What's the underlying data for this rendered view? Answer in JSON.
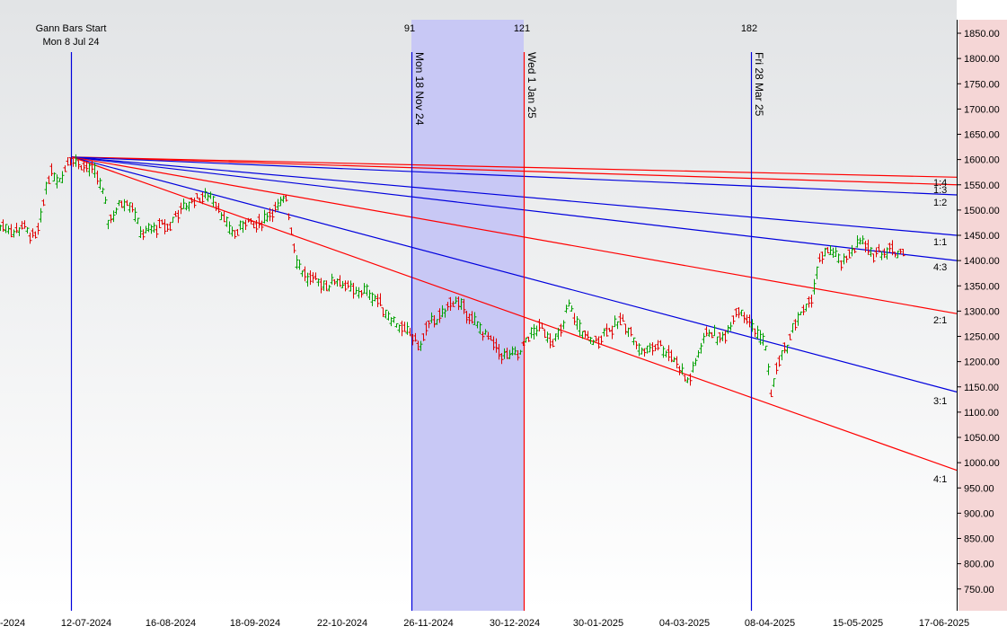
{
  "chart_data": {
    "type": "candlestick-ohlc with gann fan",
    "colors": {
      "up": "#00a000",
      "down": "#e00000",
      "fan_red": "#ff0000",
      "fan_blue": "#0000dd",
      "bar_line": "#0000dd",
      "band_fill": "#c8c8f5",
      "future_zone": "#f5d6d6",
      "bg_top": "#e2e4e6",
      "bg_bottom": "#ffffff"
    },
    "x_labels": [
      "-2024",
      "12-07-2024",
      "16-08-2024",
      "18-09-2024",
      "22-10-2024",
      "26-11-2024",
      "30-12-2024",
      "30-01-2025",
      "04-03-2025",
      "08-04-2025",
      "15-05-2025",
      "17-06-2025"
    ],
    "y_ticks": [
      "750.00",
      "800.00",
      "850.00",
      "900.00",
      "950.00",
      "1000.00",
      "1050.00",
      "1100.00",
      "1150.00",
      "1200.00",
      "1250.00",
      "1300.00",
      "1350.00",
      "1400.00",
      "1450.00",
      "1500.00",
      "1550.00",
      "1600.00",
      "1650.00",
      "1700.00",
      "1750.00",
      "1800.00",
      "1850.00"
    ],
    "ylim": [
      725,
      1870
    ],
    "markers": [
      {
        "title": "Gann Bars Start",
        "date": "Mon 8 Jul 24"
      },
      {
        "count": "91",
        "date": "Mon 18 Nov 24"
      },
      {
        "count": "121",
        "date": "Wed 1 Jan 25"
      },
      {
        "count": "182",
        "date": "Fri 28 Mar 25"
      }
    ],
    "fan_origin": {
      "date": "08-07-2024",
      "price": 1605
    },
    "fan_lines": [
      {
        "label": "1:4",
        "color": "red",
        "end_price": 1565
      },
      {
        "label": "1:3",
        "color": "red",
        "end_price": 1550
      },
      {
        "label": "1:2",
        "color": "blue",
        "end_price": 1530
      },
      {
        "label": "1:1",
        "color": "blue",
        "end_price": 1450
      },
      {
        "label": "4:3",
        "color": "blue",
        "end_price": 1400
      },
      {
        "label": "2:1",
        "color": "red",
        "end_price": 1295
      },
      {
        "label": "3:1",
        "color": "blue",
        "end_price": 1140
      },
      {
        "label": "4:1",
        "color": "red",
        "end_price": 985
      }
    ],
    "price_path": [
      [
        -1,
        1465
      ],
      [
        5,
        1470
      ],
      [
        15,
        1455
      ],
      [
        25,
        1470
      ],
      [
        33,
        1450
      ],
      [
        40,
        1445
      ],
      [
        46,
        1490
      ],
      [
        52,
        1560
      ],
      [
        58,
        1575
      ],
      [
        64,
        1560
      ],
      [
        70,
        1570
      ],
      [
        76,
        1600
      ],
      [
        80,
        1605
      ],
      [
        88,
        1590
      ],
      [
        95,
        1585
      ],
      [
        103,
        1580
      ],
      [
        110,
        1560
      ],
      [
        116,
        1520
      ],
      [
        120,
        1480
      ],
      [
        126,
        1490
      ],
      [
        132,
        1510
      ],
      [
        140,
        1520
      ],
      [
        148,
        1505
      ],
      [
        155,
        1460
      ],
      [
        160,
        1450
      ],
      [
        166,
        1465
      ],
      [
        172,
        1460
      ],
      [
        180,
        1470
      ],
      [
        188,
        1465
      ],
      [
        195,
        1490
      ],
      [
        205,
        1505
      ],
      [
        215,
        1520
      ],
      [
        225,
        1525
      ],
      [
        235,
        1530
      ],
      [
        243,
        1505
      ],
      [
        250,
        1475
      ],
      [
        257,
        1460
      ],
      [
        262,
        1450
      ],
      [
        268,
        1470
      ],
      [
        275,
        1480
      ],
      [
        283,
        1465
      ],
      [
        290,
        1475
      ],
      [
        298,
        1490
      ],
      [
        305,
        1500
      ],
      [
        312,
        1510
      ],
      [
        318,
        1525
      ],
      [
        324,
        1460
      ],
      [
        330,
        1400
      ],
      [
        336,
        1380
      ],
      [
        342,
        1365
      ],
      [
        350,
        1360
      ],
      [
        358,
        1355
      ],
      [
        366,
        1350
      ],
      [
        374,
        1365
      ],
      [
        380,
        1355
      ],
      [
        388,
        1345
      ],
      [
        396,
        1335
      ],
      [
        404,
        1340
      ],
      [
        412,
        1335
      ],
      [
        420,
        1320
      ],
      [
        428,
        1300
      ],
      [
        436,
        1285
      ],
      [
        444,
        1270
      ],
      [
        450,
        1260
      ],
      [
        456,
        1255
      ],
      [
        462,
        1240
      ],
      [
        468,
        1230
      ],
      [
        474,
        1265
      ],
      [
        480,
        1280
      ],
      [
        487,
        1285
      ],
      [
        494,
        1295
      ],
      [
        500,
        1315
      ],
      [
        507,
        1320
      ],
      [
        513,
        1310
      ],
      [
        520,
        1295
      ],
      [
        526,
        1280
      ],
      [
        532,
        1270
      ],
      [
        538,
        1255
      ],
      [
        544,
        1245
      ],
      [
        550,
        1230
      ],
      [
        557,
        1215
      ],
      [
        564,
        1210
      ],
      [
        571,
        1215
      ],
      [
        578,
        1210
      ],
      [
        584,
        1240
      ],
      [
        590,
        1255
      ],
      [
        596,
        1260
      ],
      [
        602,
        1270
      ],
      [
        608,
        1255
      ],
      [
        614,
        1240
      ],
      [
        620,
        1250
      ],
      [
        626,
        1265
      ],
      [
        632,
        1315
      ],
      [
        638,
        1290
      ],
      [
        644,
        1270
      ],
      [
        650,
        1255
      ],
      [
        656,
        1240
      ],
      [
        662,
        1240
      ],
      [
        668,
        1245
      ],
      [
        674,
        1265
      ],
      [
        680,
        1260
      ],
      [
        686,
        1275
      ],
      [
        692,
        1280
      ],
      [
        698,
        1270
      ],
      [
        704,
        1250
      ],
      [
        710,
        1225
      ],
      [
        716,
        1220
      ],
      [
        722,
        1225
      ],
      [
        728,
        1230
      ],
      [
        734,
        1235
      ],
      [
        740,
        1220
      ],
      [
        746,
        1215
      ],
      [
        752,
        1200
      ],
      [
        758,
        1185
      ],
      [
        764,
        1160
      ],
      [
        770,
        1175
      ],
      [
        776,
        1210
      ],
      [
        782,
        1245
      ],
      [
        788,
        1260
      ],
      [
        794,
        1255
      ],
      [
        800,
        1245
      ],
      [
        806,
        1250
      ],
      [
        812,
        1270
      ],
      [
        818,
        1300
      ],
      [
        824,
        1305
      ],
      [
        830,
        1285
      ],
      [
        836,
        1275
      ],
      [
        842,
        1255
      ],
      [
        848,
        1250
      ],
      [
        854,
        1210
      ],
      [
        858,
        1130
      ],
      [
        862,
        1170
      ],
      [
        866,
        1200
      ],
      [
        872,
        1220
      ],
      [
        878,
        1240
      ],
      [
        884,
        1275
      ],
      [
        890,
        1295
      ],
      [
        896,
        1300
      ],
      [
        902,
        1320
      ],
      [
        906,
        1350
      ],
      [
        910,
        1390
      ],
      [
        914,
        1405
      ],
      [
        918,
        1410
      ],
      [
        922,
        1425
      ],
      [
        926,
        1415
      ],
      [
        930,
        1410
      ],
      [
        934,
        1395
      ],
      [
        938,
        1395
      ],
      [
        942,
        1400
      ],
      [
        946,
        1420
      ],
      [
        950,
        1425
      ],
      [
        954,
        1430
      ],
      [
        958,
        1440
      ],
      [
        962,
        1430
      ],
      [
        966,
        1420
      ],
      [
        970,
        1410
      ],
      [
        974,
        1415
      ],
      [
        978,
        1420
      ],
      [
        982,
        1415
      ],
      [
        986,
        1420
      ],
      [
        990,
        1425
      ],
      [
        994,
        1420
      ],
      [
        998,
        1415
      ],
      [
        1002,
        1420
      ],
      [
        1006,
        1420
      ]
    ]
  }
}
